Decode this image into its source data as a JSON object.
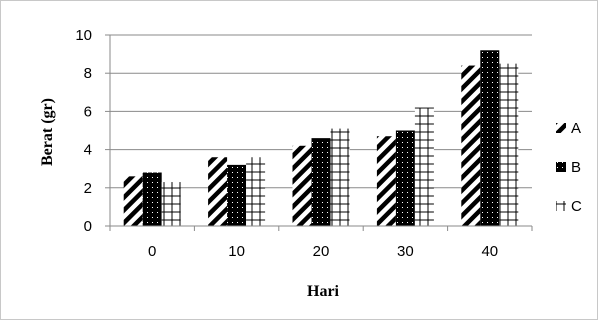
{
  "chart_data": {
    "type": "bar",
    "title": "",
    "xlabel": "Hari",
    "ylabel": "Berat (gr)",
    "categories": [
      "0",
      "10",
      "20",
      "30",
      "40"
    ],
    "ylim": [
      0,
      10
    ],
    "yticks": [
      "0",
      "2",
      "4",
      "6",
      "8",
      "10"
    ],
    "grid": true,
    "legend": "right",
    "series": [
      {
        "name": "A",
        "pattern": "diagonal-hatch",
        "values": [
          2.6,
          3.6,
          4.2,
          4.7,
          8.4
        ]
      },
      {
        "name": "B",
        "pattern": "black-dotted",
        "values": [
          2.8,
          3.2,
          4.6,
          5.0,
          9.2
        ]
      },
      {
        "name": "C",
        "pattern": "grid-cross",
        "values": [
          2.3,
          3.6,
          5.1,
          6.2,
          8.5
        ]
      }
    ]
  }
}
